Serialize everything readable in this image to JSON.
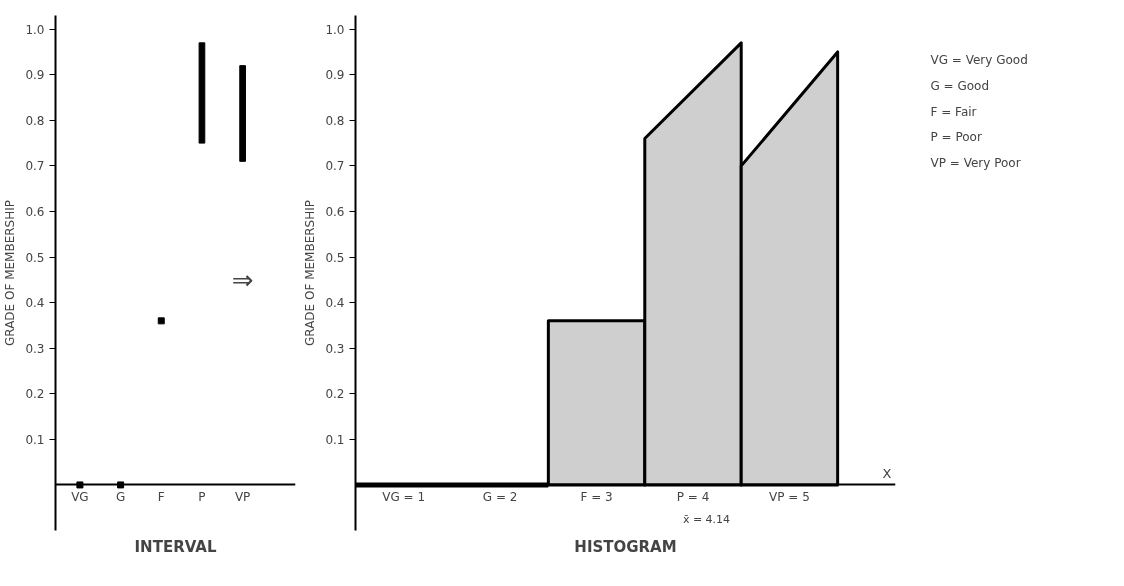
{
  "chart_data": [
    {
      "type": "bar",
      "title": "INTERVAL",
      "ylabel": "GRADE OF MEMBERSHIP",
      "categories": [
        "VG",
        "G",
        "F",
        "P",
        "VP"
      ],
      "ylim": [
        -0.1,
        1.03
      ],
      "yticks": [
        0.1,
        0.2,
        0.3,
        0.4,
        0.5,
        0.6,
        0.7,
        0.8,
        0.9,
        {
          "value": 1.0,
          "label": "1.0"
        }
      ],
      "series": [
        {
          "type": "scatter",
          "color": "#000000",
          "values": [
            0,
            0,
            0.36,
            null,
            null
          ]
        },
        {
          "type": "bar",
          "color": "#000000",
          "base": [
            null,
            null,
            null,
            0.75,
            0.71
          ],
          "values": [
            null,
            null,
            null,
            0.22,
            0.21
          ]
        }
      ],
      "marker": "square",
      "annotations": [
        "⇒"
      ]
    },
    {
      "type": "area",
      "title": "HISTOGRAM",
      "ylabel": "GRADE OF MEMBERSHIP",
      "xlabel": "X",
      "xlim": [
        0.5,
        6.1
      ],
      "xticks": [
        {
          "value": 1,
          "label": "VG = 1"
        },
        {
          "value": 2,
          "label": "G = 2"
        },
        {
          "value": 3,
          "label": "F = 3"
        },
        {
          "value": 4,
          "label": "P = 4"
        },
        {
          "value": 5,
          "label": "VP = 5"
        }
      ],
      "ylim": [
        -0.1,
        1.03
      ],
      "yticks": [
        0.1,
        0.2,
        0.3,
        0.4,
        0.5,
        0.6,
        0.7,
        0.8,
        0.9,
        {
          "value": 1.0,
          "label": "1.0"
        }
      ],
      "series": [
        {
          "type": "line",
          "color": "#000000",
          "x": [
            0.5,
            2.5
          ],
          "values": [
            0,
            0
          ]
        },
        {
          "color": "#cfcfcf",
          "x": [
            2.5,
            3.5
          ],
          "values": [
            0.36,
            0.36
          ]
        },
        {
          "color": "#cfcfcf",
          "x": [
            3.5,
            4.5
          ],
          "values": [
            0.76,
            0.97
          ]
        },
        {
          "color": "#cfcfcf",
          "x": [
            4.5,
            5.5
          ],
          "values": [
            0.7,
            0.95
          ]
        }
      ],
      "annotations": [
        {
          "text": "x̄ = 4.14",
          "x": 4.14,
          "y": 0
        }
      ]
    },
    {
      "type": "other",
      "annotations": [
        "VG = Very Good",
        "G = Good",
        "F = Fair",
        "P = Poor",
        "VP = Very Poor"
      ]
    }
  ]
}
